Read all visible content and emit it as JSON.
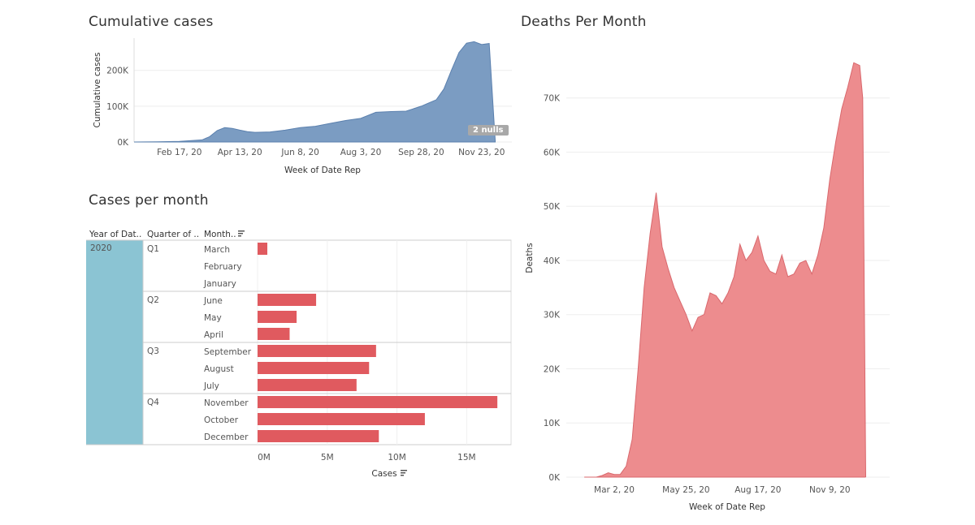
{
  "titles": {
    "cumulative": "Cumulative cases",
    "cases_month": "Cases per month",
    "deaths": "Deaths Per Month"
  },
  "nulls_badge": "2 nulls",
  "colors": {
    "cumulative": "#7b9cc2",
    "cumulative_stroke": "#5b80ae",
    "bars": "#e05a5f",
    "deaths": "#ed8c8e",
    "deaths_stroke": "#d9686d",
    "year_cell": "#8bc4d3"
  },
  "chart_data": [
    {
      "type": "area",
      "title": "Cumulative cases",
      "xlabel": "Week of Date Rep",
      "ylabel": "Cumulative cases",
      "x_ticks": [
        "Feb 17, 20",
        "Apr 13, 20",
        "Jun 8, 20",
        "Aug 3, 20",
        "Sep 28, 20",
        "Nov 23, 20"
      ],
      "y_ticks": [
        "0K",
        "100K",
        "200K"
      ],
      "ylim": [
        0,
        290000
      ],
      "week_range": [
        0,
        50
      ],
      "x_tick_weeks": [
        6,
        14,
        22,
        30,
        38,
        46
      ],
      "weeks": [
        0,
        3,
        6,
        9,
        10,
        11,
        12,
        13,
        14,
        15,
        16,
        18,
        20,
        22,
        24,
        26,
        28,
        30,
        32,
        34,
        36,
        38,
        40,
        41,
        42,
        43,
        44,
        45,
        46,
        47,
        47.8
      ],
      "values": [
        0,
        500,
        1500,
        6000,
        15000,
        32000,
        40000,
        38000,
        33000,
        29000,
        27000,
        28000,
        33000,
        40000,
        44000,
        52000,
        60000,
        66000,
        83000,
        85000,
        86000,
        100000,
        118000,
        148000,
        200000,
        250000,
        276000,
        280000,
        272000,
        275000,
        3000
      ],
      "annotation": "2 nulls"
    },
    {
      "type": "bar",
      "title": "Cases per month",
      "xlabel": "Cases",
      "columns": [
        "Year of Dat..",
        "Quarter of ..",
        "Month.."
      ],
      "year": "2020",
      "x_ticks": [
        "0M",
        "5M",
        "10M",
        "15M"
      ],
      "xlim": [
        0,
        17600000
      ],
      "quarters": [
        {
          "label": "Q1",
          "months": [
            {
              "label": "March",
              "value": 700000
            },
            {
              "label": "February",
              "value": 0
            },
            {
              "label": "January",
              "value": 0
            }
          ]
        },
        {
          "label": "Q2",
          "months": [
            {
              "label": "June",
              "value": 4200000
            },
            {
              "label": "May",
              "value": 2800000
            },
            {
              "label": "April",
              "value": 2300000
            }
          ]
        },
        {
          "label": "Q3",
          "months": [
            {
              "label": "September",
              "value": 8500000
            },
            {
              "label": "August",
              "value": 8000000
            },
            {
              "label": "July",
              "value": 7100000
            }
          ]
        },
        {
          "label": "Q4",
          "months": [
            {
              "label": "November",
              "value": 17200000
            },
            {
              "label": "October",
              "value": 12000000
            },
            {
              "label": "December",
              "value": 8700000
            }
          ]
        }
      ]
    },
    {
      "type": "area",
      "title": "Deaths Per Month",
      "xlabel": "Week of Date Rep",
      "ylabel": "Deaths",
      "x_ticks": [
        "Mar 2, 20",
        "May 25, 20",
        "Aug 17, 20",
        "Nov 9, 20"
      ],
      "y_ticks": [
        "0K",
        "10K",
        "20K",
        "30K",
        "40K",
        "50K",
        "60K",
        "70K"
      ],
      "ylim": [
        0,
        77000
      ],
      "x_range": [
        -8,
        46
      ],
      "x_tick_positions": [
        0,
        12,
        24,
        36
      ],
      "x": [
        -5,
        -3,
        -2,
        -1,
        0,
        1,
        2,
        3,
        4,
        5,
        6,
        7,
        8,
        9,
        10,
        11,
        12,
        13,
        14,
        15,
        16,
        17,
        18,
        19,
        20,
        21,
        22,
        23,
        24,
        25,
        26,
        27,
        28,
        29,
        30,
        31,
        32,
        33,
        34,
        35,
        36,
        37,
        38,
        39,
        40,
        41,
        41.5,
        42
      ],
      "values": [
        0,
        0,
        300,
        800,
        500,
        500,
        2000,
        7000,
        20000,
        35000,
        45000,
        52500,
        42500,
        38500,
        35000,
        32500,
        30000,
        27000,
        29500,
        30000,
        34000,
        33500,
        32000,
        34000,
        37000,
        43000,
        40000,
        41500,
        44500,
        40000,
        38000,
        37500,
        41000,
        37000,
        37500,
        39500,
        40000,
        37500,
        41000,
        46000,
        55000,
        62000,
        68000,
        72000,
        76500,
        76000,
        70000,
        0
      ]
    }
  ]
}
